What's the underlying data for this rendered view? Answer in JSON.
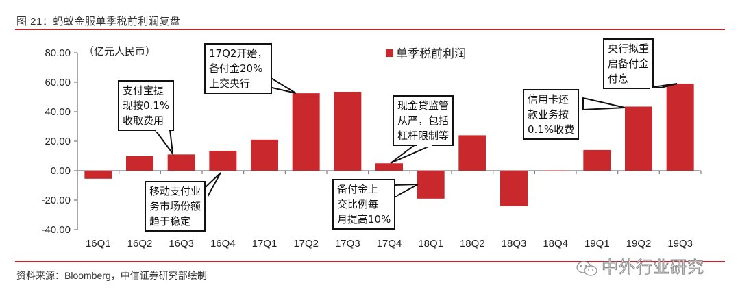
{
  "figure": {
    "title": "图 21：蚂蚁金服单季税前利润复盘",
    "source": "资料来源：Bloomberg，中信证券研究部绘制",
    "watermark": "中外行业研究",
    "bar_color": "#c9282d",
    "rule_color": "#c0262c"
  },
  "chart_data": {
    "type": "bar",
    "title": "蚂蚁金服单季税前利润复盘",
    "xlabel": "",
    "ylabel": "（亿元人民币）",
    "unit_label": "（亿元人民币）",
    "ylim": [
      -40,
      80
    ],
    "yticks": [
      "80.00",
      "60.00",
      "40.00",
      "20.00",
      "0.00",
      "-20.00",
      "-40.00"
    ],
    "ytick_values": [
      80,
      60,
      40,
      20,
      0,
      -20,
      -40
    ],
    "grid": false,
    "legend_position": "top-center-right",
    "categories": [
      "16Q1",
      "16Q2",
      "16Q3",
      "16Q4",
      "17Q1",
      "17Q2",
      "17Q3",
      "17Q4",
      "18Q1",
      "18Q2",
      "18Q3",
      "18Q4",
      "19Q1",
      "19Q2",
      "19Q3"
    ],
    "series": [
      {
        "name": "单季税前利润",
        "values": [
          -5.5,
          9.8,
          11.0,
          13.5,
          21.0,
          52.5,
          53.5,
          5.0,
          -19.0,
          24.0,
          -24.0,
          0.0,
          14.0,
          43.5,
          59.0
        ]
      }
    ],
    "annotations": [
      {
        "target": "16Q3",
        "text": [
          "支付宝提",
          "现按0.1%",
          "收取费用"
        ]
      },
      {
        "target": "16Q4",
        "text": [
          "移动支付业",
          "务市场份额",
          "趋于稳定"
        ]
      },
      {
        "target": "17Q2",
        "text": [
          "17Q2开始，",
          "备付金20%",
          "上交央行"
        ]
      },
      {
        "target": "17Q4",
        "text": [
          "现金贷监管",
          "从严，包括",
          "杠杆限制等"
        ]
      },
      {
        "target": "18Q1",
        "text": [
          "备付金上",
          "交比例每",
          "月提高10%"
        ]
      },
      {
        "target": "19Q2",
        "text": [
          "信用卡还",
          "款业务按",
          "0.1%收费"
        ]
      },
      {
        "target": "19Q3",
        "text": [
          "央行拟重",
          "启备付金",
          "付息"
        ]
      }
    ]
  }
}
